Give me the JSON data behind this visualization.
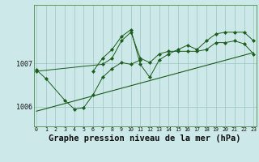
{
  "background_color": "#cce8e8",
  "plot_bg_color": "#cce8e8",
  "line_color": "#1a5c1a",
  "grid_color": "#9dc4c4",
  "title": "Graphe pression niveau de la mer (hPa)",
  "title_fontsize": 7.5,
  "x_ticks": [
    0,
    1,
    2,
    3,
    4,
    5,
    6,
    7,
    8,
    9,
    10,
    11,
    12,
    13,
    14,
    15,
    16,
    17,
    18,
    19,
    20,
    21,
    22,
    23
  ],
  "ylim": [
    1005.55,
    1008.35
  ],
  "xlim": [
    -0.3,
    23.3
  ],
  "yticks": [
    1006,
    1007
  ],
  "series1_x": [
    0,
    1,
    3,
    4,
    5,
    6,
    7,
    8,
    9,
    10,
    11
  ],
  "series1_y": [
    1006.85,
    1006.65,
    1006.15,
    1005.95,
    1005.98,
    1006.28,
    1006.68,
    1006.88,
    1007.02,
    1006.98,
    1007.08
  ],
  "series2_x": [
    0,
    7,
    8,
    9,
    10,
    11,
    12,
    13,
    14,
    15,
    16,
    17,
    18,
    19,
    20,
    21,
    22,
    23
  ],
  "series2_y": [
    1006.82,
    1006.98,
    1007.12,
    1007.52,
    1007.72,
    1007.12,
    1007.02,
    1007.22,
    1007.28,
    1007.28,
    1007.28,
    1007.28,
    1007.32,
    1007.48,
    1007.48,
    1007.52,
    1007.45,
    1007.22
  ],
  "series3_x": [
    6,
    7,
    8,
    9,
    10,
    11,
    12,
    13,
    14,
    15,
    16,
    17,
    18,
    19,
    20,
    21,
    22,
    23
  ],
  "series3_y": [
    1006.82,
    1007.12,
    1007.32,
    1007.62,
    1007.78,
    1006.98,
    1006.68,
    1007.08,
    1007.22,
    1007.32,
    1007.42,
    1007.32,
    1007.52,
    1007.68,
    1007.72,
    1007.72,
    1007.72,
    1007.52
  ],
  "series4_x": [
    0,
    23
  ],
  "series4_y": [
    1005.9,
    1007.25
  ]
}
